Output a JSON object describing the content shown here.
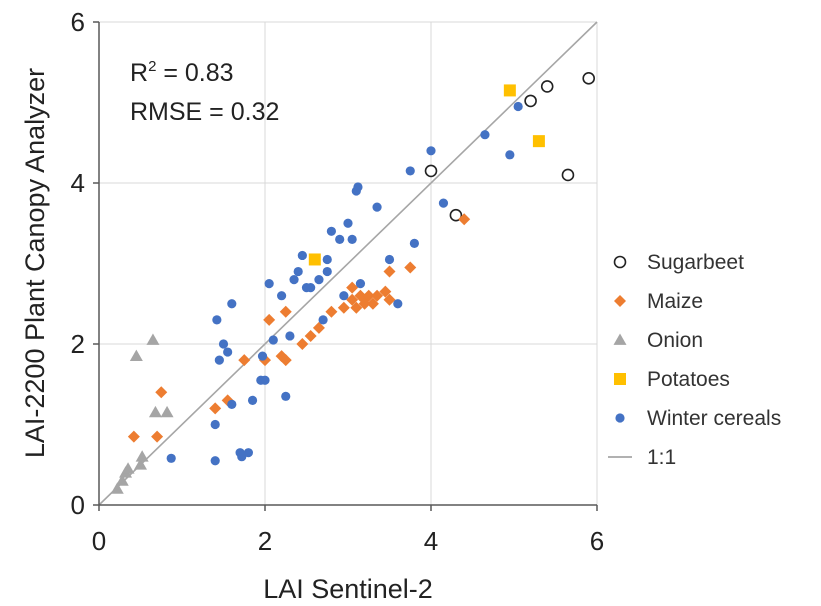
{
  "chart_data": {
    "type": "scatter",
    "xlabel": "LAI Sentinel-2",
    "ylabel": "LAI-2200 Plant Canopy Analyzer",
    "xlim": [
      0,
      6
    ],
    "ylim": [
      0,
      6
    ],
    "xticks": [
      "0",
      "2",
      "4",
      "6"
    ],
    "yticks": [
      "0",
      "2",
      "4",
      "6"
    ],
    "grid": true,
    "legend_position": "right",
    "annotations": {
      "r2_prefix": "R",
      "r2_sup": "2",
      "r2_value": " = 0.83",
      "rmse": "RMSE = 0.32"
    },
    "series": [
      {
        "name": "Sugarbeet",
        "marker": "circle-open",
        "color": "#222222",
        "points": [
          [
            4.0,
            4.15
          ],
          [
            4.3,
            3.6
          ],
          [
            5.2,
            5.02
          ],
          [
            5.4,
            5.2
          ],
          [
            5.65,
            4.1
          ],
          [
            5.9,
            5.3
          ]
        ]
      },
      {
        "name": "Maize",
        "marker": "diamond",
        "color": "#ED7D31",
        "points": [
          [
            0.42,
            0.85
          ],
          [
            0.7,
            0.85
          ],
          [
            0.75,
            1.4
          ],
          [
            1.4,
            1.2
          ],
          [
            1.55,
            1.3
          ],
          [
            1.75,
            1.8
          ],
          [
            2.0,
            1.8
          ],
          [
            2.05,
            2.3
          ],
          [
            2.2,
            1.85
          ],
          [
            2.25,
            1.8
          ],
          [
            2.25,
            2.4
          ],
          [
            2.45,
            2.0
          ],
          [
            2.55,
            2.1
          ],
          [
            2.65,
            2.2
          ],
          [
            2.8,
            2.4
          ],
          [
            2.95,
            2.45
          ],
          [
            3.05,
            2.7
          ],
          [
            3.05,
            2.55
          ],
          [
            3.1,
            2.45
          ],
          [
            3.15,
            2.6
          ],
          [
            3.2,
            2.55
          ],
          [
            3.2,
            2.5
          ],
          [
            3.25,
            2.6
          ],
          [
            3.3,
            2.5
          ],
          [
            3.35,
            2.6
          ],
          [
            3.45,
            2.65
          ],
          [
            3.5,
            2.9
          ],
          [
            3.5,
            2.55
          ],
          [
            3.75,
            2.95
          ],
          [
            4.4,
            3.55
          ]
        ]
      },
      {
        "name": "Onion",
        "marker": "triangle",
        "color": "#A5A5A5",
        "points": [
          [
            0.22,
            0.2
          ],
          [
            0.28,
            0.3
          ],
          [
            0.32,
            0.4
          ],
          [
            0.35,
            0.45
          ],
          [
            0.45,
            1.85
          ],
          [
            0.5,
            0.5
          ],
          [
            0.52,
            0.6
          ],
          [
            0.65,
            2.05
          ],
          [
            0.68,
            1.15
          ],
          [
            0.82,
            1.15
          ]
        ]
      },
      {
        "name": "Potatoes",
        "marker": "square",
        "color": "#FFC000",
        "points": [
          [
            2.6,
            3.05
          ],
          [
            4.95,
            5.15
          ],
          [
            5.3,
            4.52
          ]
        ]
      },
      {
        "name": "Winter cereals",
        "marker": "circle",
        "color": "#4472C4",
        "points": [
          [
            0.87,
            0.58
          ],
          [
            1.4,
            0.55
          ],
          [
            1.4,
            1.0
          ],
          [
            1.42,
            2.3
          ],
          [
            1.45,
            1.8
          ],
          [
            1.5,
            2.0
          ],
          [
            1.55,
            1.9
          ],
          [
            1.6,
            2.5
          ],
          [
            1.6,
            1.25
          ],
          [
            1.7,
            0.65
          ],
          [
            1.72,
            0.6
          ],
          [
            1.8,
            0.65
          ],
          [
            1.85,
            1.3
          ],
          [
            1.95,
            1.55
          ],
          [
            1.97,
            1.85
          ],
          [
            2.0,
            1.55
          ],
          [
            2.05,
            2.75
          ],
          [
            2.1,
            2.05
          ],
          [
            2.2,
            2.6
          ],
          [
            2.25,
            1.35
          ],
          [
            2.3,
            2.1
          ],
          [
            2.35,
            2.8
          ],
          [
            2.4,
            2.9
          ],
          [
            2.45,
            3.1
          ],
          [
            2.5,
            2.7
          ],
          [
            2.55,
            2.7
          ],
          [
            2.65,
            2.8
          ],
          [
            2.7,
            2.3
          ],
          [
            2.75,
            3.05
          ],
          [
            2.75,
            2.9
          ],
          [
            2.8,
            3.4
          ],
          [
            2.9,
            3.3
          ],
          [
            2.95,
            2.6
          ],
          [
            3.0,
            3.5
          ],
          [
            3.05,
            3.3
          ],
          [
            3.1,
            3.9
          ],
          [
            3.12,
            3.95
          ],
          [
            3.15,
            2.75
          ],
          [
            3.35,
            3.7
          ],
          [
            3.5,
            3.05
          ],
          [
            3.6,
            2.5
          ],
          [
            3.75,
            4.15
          ],
          [
            3.8,
            3.25
          ],
          [
            4.0,
            4.4
          ],
          [
            4.15,
            3.75
          ],
          [
            4.65,
            4.6
          ],
          [
            4.95,
            4.35
          ],
          [
            5.05,
            4.95
          ]
        ]
      },
      {
        "name": "1:1",
        "marker": "line",
        "color": "#A6A6A6",
        "points": [
          [
            0,
            0
          ],
          [
            6,
            6
          ]
        ]
      }
    ]
  }
}
